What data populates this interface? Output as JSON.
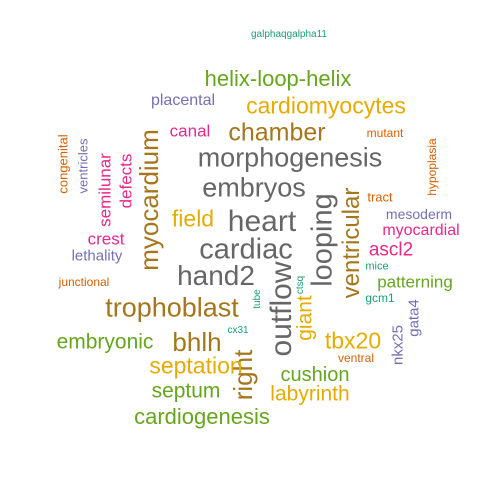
{
  "colors": {
    "green": "#1b9e77",
    "orange": "#d95f02",
    "purple": "#7570b3",
    "magenta": "#e7298a",
    "lime": "#66a61e",
    "gold": "#e6ab02",
    "brown": "#a6761d",
    "gray": "#666666"
  },
  "words": {
    "galphaqgalpha11": "galphaqgalpha11",
    "helix_loop_helix": "helix-loop-helix",
    "placental": "placental",
    "cardiomyocytes": "cardiomyocytes",
    "canal": "canal",
    "chamber": "chamber",
    "mutant": "mutant",
    "congenital": "congenital",
    "ventricles": "ventricles",
    "myocardium": "myocardium",
    "hypoplasia": "hypoplasia",
    "morphogenesis": "morphogenesis",
    "semilunar": "semilunar",
    "defects": "defects",
    "embryos": "embryos",
    "tract": "tract",
    "mesoderm": "mesoderm",
    "field": "field",
    "heart": "heart",
    "looping": "looping",
    "ventricular": "ventricular",
    "myocardial": "myocardial",
    "crest": "crest",
    "lethality": "lethality",
    "cardiac": "cardiac",
    "ascl2": "ascl2",
    "mice": "mice",
    "junctional": "junctional",
    "hand2": "hand2",
    "outflow": "outflow",
    "patterning": "patterning",
    "trophoblast": "trophoblast",
    "tube": "tube",
    "ctsq": "ctsq",
    "gcm1": "gcm1",
    "giant": "giant",
    "gata4": "gata4",
    "cx31": "cx31",
    "tbx20": "tbx20",
    "nkx25": "nkx25",
    "embryonic": "embryonic",
    "bhlh": "bhlh",
    "right": "right",
    "septation": "septation",
    "ventral": "ventral",
    "cushion": "cushion",
    "septum": "septum",
    "labyrinth": "labyrinth",
    "cardiogenesis": "cardiogenesis"
  }
}
